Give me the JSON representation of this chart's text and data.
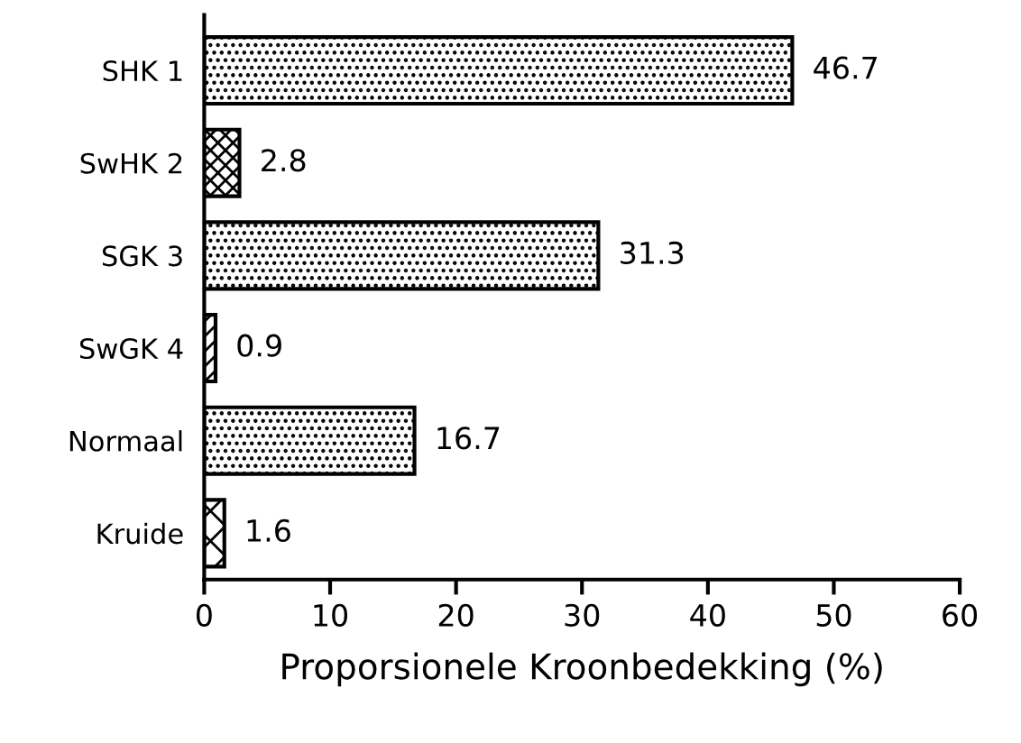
{
  "chart_data": {
    "type": "bar",
    "orientation": "horizontal",
    "categories": [
      "SHK 1",
      "SwHK 2",
      "SGK 3",
      "SwGK 4",
      "Normaal",
      "Kruide"
    ],
    "values": [
      46.7,
      2.8,
      31.3,
      0.9,
      16.7,
      1.6
    ],
    "color": "#000000",
    "xlabel": "Proporsionele Kroonbedekking (%)",
    "xlim": [
      0,
      60
    ],
    "xticks": [
      0,
      10,
      20,
      30,
      40,
      50,
      60
    ],
    "data_labels": true,
    "grid": false,
    "legend": false
  }
}
